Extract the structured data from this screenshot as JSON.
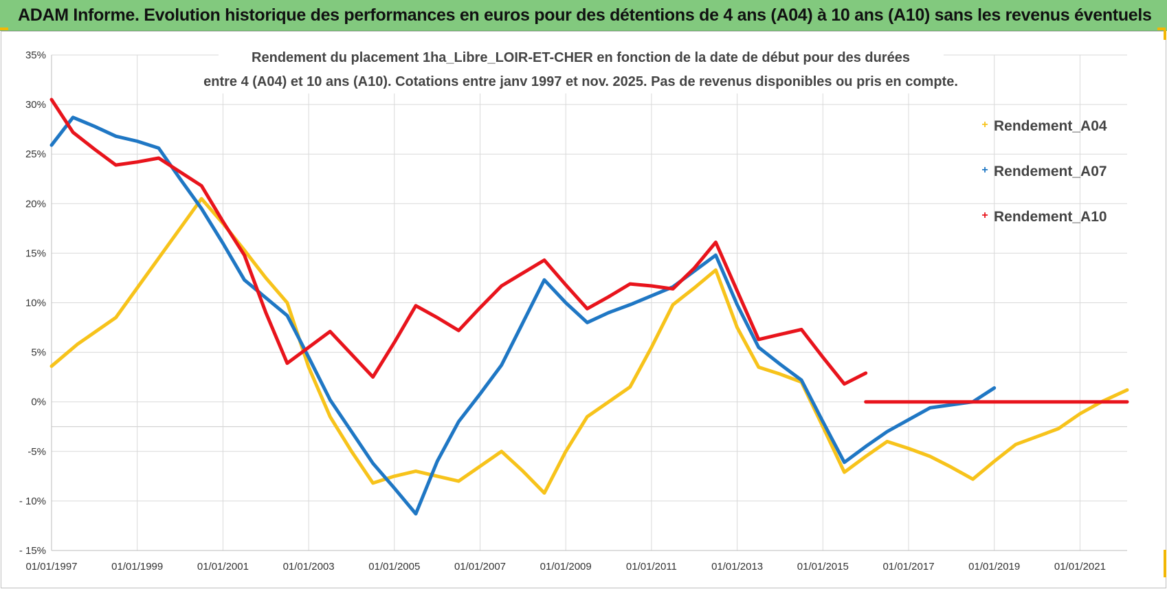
{
  "header": {
    "title": "ADAM Informe. Evolution historique des performances en euros pour des détentions de 4 ans (A04) à 10 ans (A10) sans les revenus éventuels"
  },
  "chart_data": {
    "type": "line",
    "title": "Rendement du placement 1ha_Libre_LOIR-ET-CHER en fonction de la date de début pour des durées",
    "subtitle": "entre 4 (A04) et 10 ans (A10).  Cotations entre janv 1997 et nov. 2025. Pas de revenus disponibles ou pris en compte.",
    "xlabel": "",
    "ylabel": "",
    "x_tick_labels": [
      "01/01/1997",
      "01/01/1999",
      "01/01/2001",
      "01/01/2003",
      "01/01/2005",
      "01/01/2007",
      "01/01/2009",
      "01/01/2011",
      "01/01/2013",
      "01/01/2015",
      "01/01/2017",
      "01/01/2019",
      "01/01/2021"
    ],
    "y_tick_labels": [
      "35%",
      "30%",
      "25%",
      "20%",
      "15%",
      "10%",
      "5%",
      "0%",
      "-5%",
      "- 10%",
      "- 15%"
    ],
    "xlim": [
      1997.0,
      2022.1
    ],
    "ylim": [
      -15,
      35
    ],
    "legend_position": "right",
    "grid": true,
    "series": [
      {
        "name": "Rendement_A04",
        "color": "#f7c31b",
        "points": [
          [
            1997.0,
            3.6
          ],
          [
            1997.6,
            5.8
          ],
          [
            1998.5,
            8.5
          ],
          [
            1999.0,
            11.5
          ],
          [
            1999.5,
            14.5
          ],
          [
            2000.0,
            17.5
          ],
          [
            2000.5,
            20.5
          ],
          [
            2001.0,
            18.0
          ],
          [
            2001.5,
            15.3
          ],
          [
            2002.0,
            12.5
          ],
          [
            2002.5,
            10.0
          ],
          [
            2003.0,
            3.5
          ],
          [
            2003.5,
            -1.5
          ],
          [
            2004.0,
            -5.0
          ],
          [
            2004.5,
            -8.2
          ],
          [
            2005.0,
            -7.5
          ],
          [
            2005.5,
            -7.0
          ],
          [
            2006.0,
            -7.5
          ],
          [
            2006.5,
            -8.0
          ],
          [
            2007.0,
            -6.5
          ],
          [
            2007.5,
            -5.0
          ],
          [
            2008.0,
            -7.0
          ],
          [
            2008.5,
            -9.2
          ],
          [
            2009.0,
            -5.0
          ],
          [
            2009.5,
            -1.5
          ],
          [
            2010.0,
            0.0
          ],
          [
            2010.5,
            1.5
          ],
          [
            2011.0,
            5.5
          ],
          [
            2011.5,
            9.8
          ],
          [
            2012.0,
            11.5
          ],
          [
            2012.5,
            13.3
          ],
          [
            2013.0,
            7.5
          ],
          [
            2013.5,
            3.5
          ],
          [
            2014.0,
            2.8
          ],
          [
            2014.5,
            2.0
          ],
          [
            2015.0,
            -2.5
          ],
          [
            2015.5,
            -7.1
          ],
          [
            2016.0,
            -5.5
          ],
          [
            2016.5,
            -4.0
          ],
          [
            2017.0,
            -4.7
          ],
          [
            2017.5,
            -5.5
          ],
          [
            2018.0,
            -6.6
          ],
          [
            2018.5,
            -7.8
          ],
          [
            2019.0,
            -6.0
          ],
          [
            2019.5,
            -4.3
          ],
          [
            2020.0,
            -3.5
          ],
          [
            2020.5,
            -2.7
          ],
          [
            2021.0,
            -1.2
          ],
          [
            2021.5,
            0.0
          ],
          [
            2022.1,
            1.2
          ]
        ]
      },
      {
        "name": "Rendement_A07",
        "color": "#1f77c4",
        "points": [
          [
            1997.0,
            25.9
          ],
          [
            1997.5,
            28.7
          ],
          [
            1998.0,
            27.8
          ],
          [
            1998.5,
            26.8
          ],
          [
            1999.0,
            26.3
          ],
          [
            1999.5,
            25.6
          ],
          [
            2000.0,
            22.5
          ],
          [
            2000.5,
            19.5
          ],
          [
            2001.0,
            16.0
          ],
          [
            2001.5,
            12.3
          ],
          [
            2002.0,
            10.5
          ],
          [
            2002.5,
            8.7
          ],
          [
            2003.0,
            4.5
          ],
          [
            2003.5,
            0.2
          ],
          [
            2004.0,
            -3.0
          ],
          [
            2004.5,
            -6.2
          ],
          [
            2005.0,
            -8.7
          ],
          [
            2005.5,
            -11.3
          ],
          [
            2006.0,
            -6.0
          ],
          [
            2006.5,
            -2.0
          ],
          [
            2007.0,
            0.8
          ],
          [
            2007.5,
            3.7
          ],
          [
            2008.0,
            8.0
          ],
          [
            2008.5,
            12.3
          ],
          [
            2009.0,
            10.0
          ],
          [
            2009.5,
            8.0
          ],
          [
            2010.0,
            9.0
          ],
          [
            2010.5,
            9.8
          ],
          [
            2011.0,
            10.7
          ],
          [
            2011.5,
            11.6
          ],
          [
            2012.0,
            13.2
          ],
          [
            2012.5,
            14.8
          ],
          [
            2013.0,
            9.8
          ],
          [
            2013.5,
            5.5
          ],
          [
            2014.0,
            3.8
          ],
          [
            2014.5,
            2.2
          ],
          [
            2015.0,
            -2.0
          ],
          [
            2015.5,
            -6.1
          ],
          [
            2016.0,
            -4.5
          ],
          [
            2016.5,
            -3.0
          ],
          [
            2017.0,
            -1.8
          ],
          [
            2017.5,
            -0.6
          ],
          [
            2018.0,
            -0.3
          ],
          [
            2018.5,
            0.0
          ],
          [
            2019.0,
            1.4
          ]
        ]
      },
      {
        "name": "Rendement_A10",
        "color": "#e8141c",
        "points": [
          [
            1997.0,
            30.5
          ],
          [
            1997.5,
            27.2
          ],
          [
            1998.0,
            25.5
          ],
          [
            1998.5,
            23.9
          ],
          [
            1999.0,
            24.2
          ],
          [
            1999.5,
            24.6
          ],
          [
            2000.0,
            23.2
          ],
          [
            2000.5,
            21.8
          ],
          [
            2001.0,
            18.2
          ],
          [
            2001.5,
            14.8
          ],
          [
            2002.0,
            9.0
          ],
          [
            2002.5,
            3.9
          ],
          [
            2003.0,
            5.5
          ],
          [
            2003.5,
            7.1
          ],
          [
            2004.0,
            4.8
          ],
          [
            2004.5,
            2.5
          ],
          [
            2005.0,
            6.0
          ],
          [
            2005.5,
            9.7
          ],
          [
            2006.0,
            8.5
          ],
          [
            2006.5,
            7.2
          ],
          [
            2007.0,
            9.5
          ],
          [
            2007.5,
            11.7
          ],
          [
            2008.0,
            13.0
          ],
          [
            2008.5,
            14.3
          ],
          [
            2009.0,
            11.8
          ],
          [
            2009.5,
            9.4
          ],
          [
            2010.0,
            10.6
          ],
          [
            2010.5,
            11.9
          ],
          [
            2011.0,
            11.7
          ],
          [
            2011.5,
            11.4
          ],
          [
            2012.0,
            13.5
          ],
          [
            2012.5,
            16.1
          ],
          [
            2013.0,
            11.2
          ],
          [
            2013.5,
            6.3
          ],
          [
            2014.0,
            6.8
          ],
          [
            2014.5,
            7.3
          ],
          [
            2015.0,
            4.5
          ],
          [
            2015.5,
            1.8
          ],
          [
            2016.0,
            2.9
          ]
        ]
      },
      {
        "name": "Rendement_A10",
        "color": "#e8141c",
        "points": [
          [
            2016.0,
            0.0
          ],
          [
            2022.1,
            0.0
          ]
        ]
      }
    ]
  }
}
